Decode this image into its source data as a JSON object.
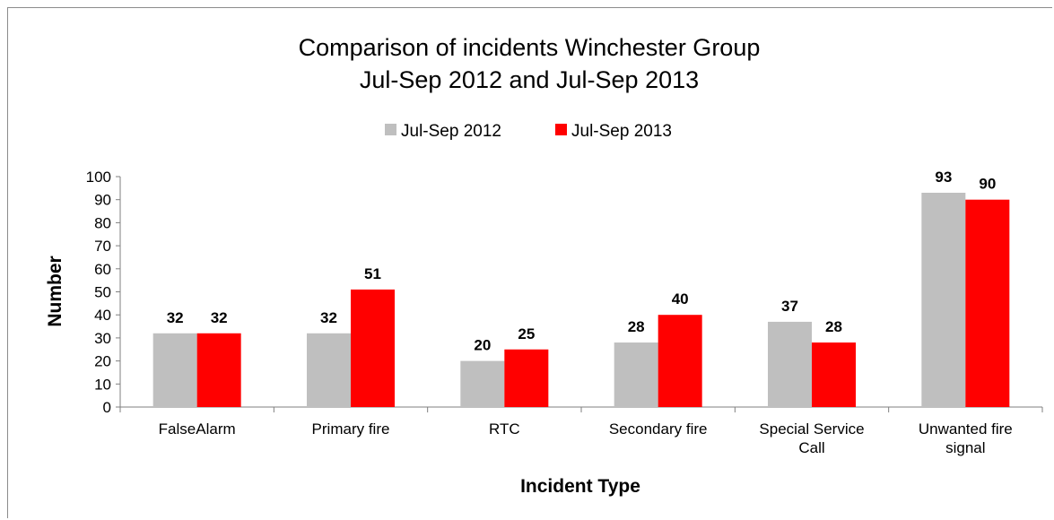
{
  "chart_data": {
    "type": "bar",
    "title_lines": [
      "Comparison of incidents Winchester Group",
      "Jul-Sep 2012 and Jul-Sep  2013"
    ],
    "xlabel": "Incident Type",
    "ylabel": "Number",
    "ylim": [
      0,
      100
    ],
    "yticks": [
      "0",
      "10",
      "20",
      "30",
      "40",
      "50",
      "60",
      "70",
      "80",
      "90",
      "100"
    ],
    "categories": [
      [
        "FalseAlarm"
      ],
      [
        "Primary fire"
      ],
      [
        "RTC"
      ],
      [
        "Secondary fire"
      ],
      [
        "Special Service",
        "Call"
      ],
      [
        "Unwanted fire",
        "signal"
      ]
    ],
    "series": [
      {
        "name": "Jul-Sep 2012",
        "color": "#bfbfbf",
        "values": [
          32,
          32,
          20,
          28,
          37,
          93
        ]
      },
      {
        "name": "Jul-Sep 2013",
        "color": "#ff0000",
        "values": [
          32,
          51,
          25,
          40,
          28,
          90
        ]
      }
    ],
    "legend_position": "top",
    "grid": false
  }
}
